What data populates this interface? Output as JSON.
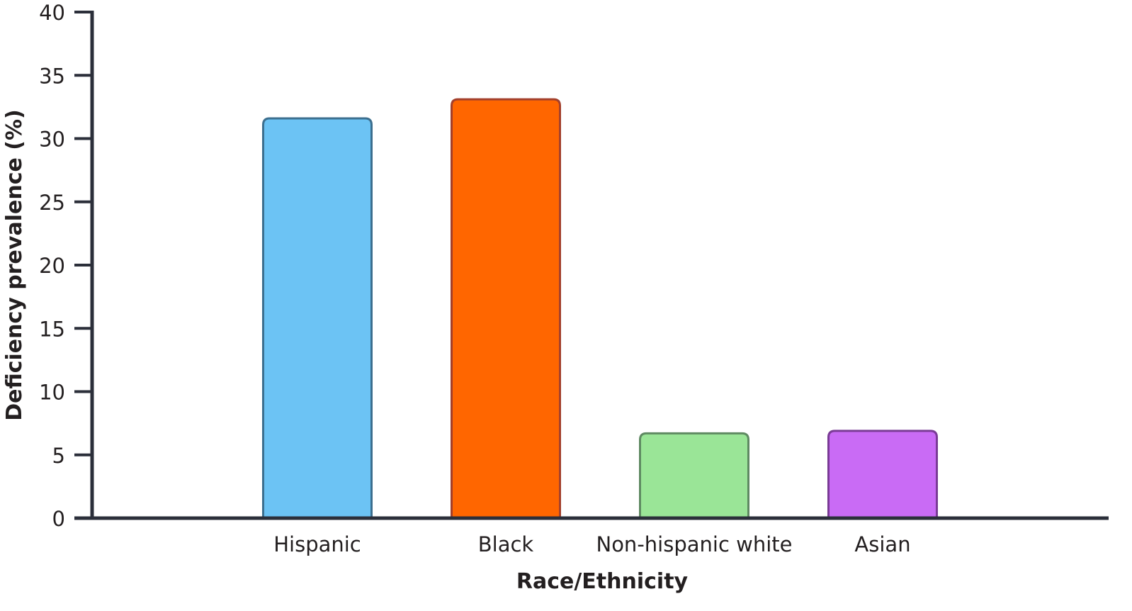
{
  "chart_data": {
    "type": "bar",
    "title": "",
    "xlabel": "Race/Ethnicity",
    "ylabel": "Deficiency prevalence (%)",
    "ylim": [
      0,
      40
    ],
    "yticks": [
      "0",
      "5",
      "10",
      "15",
      "20",
      "25",
      "30",
      "35",
      "40"
    ],
    "ytick_values": [
      0,
      5,
      10,
      15,
      20,
      25,
      30,
      35,
      40
    ],
    "categories": [
      "Hispanic",
      "Black",
      "Non-hispanic white",
      "Asian"
    ],
    "values": [
      31.6,
      33.1,
      6.7,
      6.9
    ],
    "fill_colors": [
      "#6cc3f4",
      "#ff6600",
      "#9ae597",
      "#c96bf5"
    ],
    "stroke_colors": [
      "#3c6f8f",
      "#a3402c",
      "#5f8a62",
      "#7a3b96"
    ],
    "axis_color": "#2b2f3a",
    "grid": false,
    "legend": "none"
  }
}
